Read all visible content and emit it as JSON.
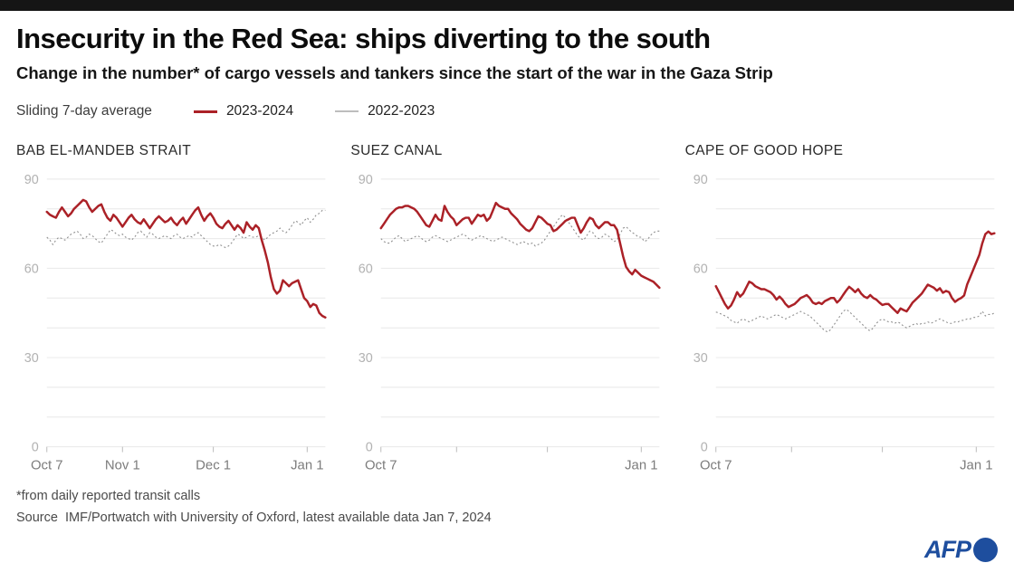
{
  "header": {
    "title": "Insecurity in the Red Sea: ships diverting to the south",
    "subtitle": "Change in the number* of cargo vessels and tankers since the start of the war in the Gaza Strip"
  },
  "legend": {
    "caption": "Sliding 7-day average",
    "series": [
      {
        "label": "2023-2024",
        "color": "#ab2127",
        "style": "solid"
      },
      {
        "label": "2022-2023",
        "color": "#bdbdbd",
        "style": "dotted"
      }
    ]
  },
  "colors": {
    "accent_red": "#ab2127",
    "series_gray": "#8f8f8f",
    "legend_gray": "#bdbdbd",
    "grid": "#e8e8e8",
    "tick": "#bbbbbb",
    "topbar_black": "#151515",
    "afp_blue": "#1e4e9e"
  },
  "footer": {
    "footnote": "*from daily reported transit calls",
    "source": "Source  IMF/Portwatch with University of Oxford, latest available data Jan 7, 2024",
    "logo_text": "AFP"
  },
  "chart_data": [
    {
      "type": "line",
      "title": "BAB EL-MANDEB STRAIT",
      "ylabel": "",
      "xlabel": "",
      "ylim": [
        0,
        90
      ],
      "yticks": [
        90,
        60,
        30,
        0
      ],
      "grid_step": 10,
      "grid": true,
      "days_total": 92,
      "x_tick_days": [
        0,
        25,
        55,
        86
      ],
      "x_tick_labels": [
        "Oct 7",
        "Nov 1",
        "Dec 1",
        "Jan 1"
      ],
      "series": [
        {
          "name": "2023-2024",
          "values": [
            79,
            78,
            77.5,
            77,
            79,
            80.5,
            79,
            77.5,
            78.5,
            80,
            81,
            82,
            83,
            82.5,
            80.5,
            79,
            80,
            81,
            81.5,
            79,
            77,
            76,
            78,
            77,
            75.5,
            74,
            75.5,
            77,
            78,
            76.5,
            75.5,
            75,
            76.5,
            75,
            73.5,
            75,
            76.5,
            77.5,
            76.5,
            75.5,
            76,
            77,
            75.5,
            74.5,
            76,
            77,
            75,
            76.5,
            78,
            79.5,
            80.5,
            78,
            76,
            77.5,
            78.5,
            77,
            75,
            74,
            73.5,
            75,
            76,
            74.5,
            73,
            74.5,
            73.5,
            72,
            75.5,
            74,
            73,
            74.5,
            73.5,
            69.5,
            66,
            62,
            57,
            53,
            51.5,
            52.5,
            56,
            55,
            54,
            55,
            55.5,
            56,
            53,
            50,
            49,
            47,
            48,
            47.5,
            45,
            44,
            43.5
          ]
        },
        {
          "name": "2022-2023",
          "values": [
            70.5,
            69.5,
            68,
            69.5,
            70.5,
            70,
            69.5,
            70.5,
            71.5,
            72,
            72.5,
            71.5,
            70,
            70.5,
            71.5,
            71,
            70,
            69,
            68.5,
            70,
            71.5,
            73,
            72.5,
            71.5,
            71,
            71.5,
            70.5,
            70,
            69.5,
            70.5,
            72,
            72.5,
            71.5,
            70.5,
            72,
            71.5,
            70.5,
            70,
            70.5,
            71,
            70.5,
            70,
            71,
            71.5,
            70.5,
            70,
            70.5,
            71,
            70.5,
            71.5,
            72,
            71,
            70,
            69,
            68,
            67.5,
            67.5,
            68,
            67.5,
            67,
            67.5,
            68.5,
            70,
            71.5,
            71,
            70,
            70.5,
            71,
            70.5,
            70.5,
            71,
            70.5,
            69.5,
            70.5,
            71.5,
            72,
            72.5,
            73.5,
            72.5,
            72,
            73,
            74.5,
            76,
            75.5,
            74.5,
            76,
            77,
            75.5,
            76.5,
            78,
            78.5,
            79.5,
            79.5
          ]
        }
      ]
    },
    {
      "type": "line",
      "title": "SUEZ CANAL",
      "ylabel": "",
      "xlabel": "",
      "ylim": [
        0,
        90
      ],
      "yticks": [
        90,
        60,
        30,
        0
      ],
      "grid_step": 10,
      "grid": true,
      "days_total": 92,
      "x_tick_days": [
        0,
        25,
        55,
        86
      ],
      "x_tick_labels": [
        "Oct 7",
        "",
        "",
        "Jan 1"
      ],
      "series": [
        {
          "name": "2023-2024",
          "values": [
            73.5,
            75,
            76.5,
            78,
            79,
            80,
            80.5,
            80.5,
            81,
            81,
            80.5,
            80,
            79,
            77.5,
            76,
            74.5,
            74,
            76,
            78,
            76.5,
            76,
            81,
            79,
            77.5,
            76.5,
            74.5,
            75.5,
            76.5,
            77,
            77,
            75,
            76.5,
            78,
            77.5,
            78,
            76,
            77,
            79.5,
            82,
            81,
            80.5,
            80,
            80,
            78.5,
            77.5,
            76.5,
            75,
            74,
            73,
            72.5,
            73.5,
            75.5,
            77.5,
            77,
            76,
            75,
            74.5,
            72.5,
            73,
            74,
            75,
            76,
            76.5,
            77,
            77,
            74.5,
            72,
            73.5,
            75.5,
            77,
            76.5,
            74.5,
            73.5,
            74.5,
            75.5,
            75.5,
            74.5,
            74.5,
            73,
            68.5,
            64,
            60.5,
            59,
            58,
            59.5,
            58.5,
            57.5,
            57,
            56.5,
            56,
            55.5,
            54.5,
            53.5
          ]
        },
        {
          "name": "2022-2023",
          "values": [
            70,
            69,
            68.5,
            68.5,
            69.5,
            70.5,
            71,
            70,
            69,
            69.5,
            70,
            70.5,
            71,
            70.5,
            69.5,
            69,
            69.5,
            70.5,
            71,
            70.5,
            70,
            69.5,
            69,
            69.5,
            70,
            70.5,
            71,
            71.5,
            71,
            70,
            69.5,
            70,
            70.5,
            71,
            70.5,
            70,
            69.5,
            69,
            69.5,
            70,
            70.5,
            70,
            69.5,
            69,
            68.5,
            68,
            68.5,
            69,
            68.5,
            68,
            68.5,
            67.5,
            68,
            68.5,
            69.5,
            71,
            72.5,
            74,
            75.5,
            77,
            78,
            77,
            75.5,
            74,
            72.5,
            71,
            70,
            69.5,
            71,
            72.5,
            72,
            70.5,
            70,
            70.5,
            71.5,
            71,
            70,
            69,
            69.5,
            71.5,
            73.5,
            74,
            73,
            72,
            71.5,
            70.5,
            70.5,
            69,
            69.5,
            71,
            72,
            72.5,
            72.5
          ]
        }
      ]
    },
    {
      "type": "line",
      "title": "CAPE OF GOOD HOPE",
      "ylabel": "",
      "xlabel": "",
      "ylim": [
        0,
        90
      ],
      "yticks": [
        90,
        60,
        30,
        0
      ],
      "grid_step": 10,
      "grid": true,
      "days_total": 92,
      "x_tick_days": [
        0,
        25,
        55,
        86
      ],
      "x_tick_labels": [
        "Oct 7",
        "",
        "",
        "Jan 1"
      ],
      "series": [
        {
          "name": "2023-2024",
          "values": [
            54,
            52,
            50,
            48,
            46.5,
            47.5,
            49.5,
            52,
            50.5,
            51.5,
            53.5,
            55.5,
            55,
            54,
            53.5,
            53,
            53,
            52.5,
            52,
            51,
            49.5,
            50.5,
            49.5,
            48,
            47,
            47.5,
            48,
            49,
            50,
            50.5,
            51,
            50,
            48.5,
            48,
            48.5,
            48,
            49,
            49.5,
            50,
            50,
            48.5,
            49.5,
            51,
            52.5,
            53.8,
            53,
            52,
            53,
            51.5,
            50.5,
            50,
            51,
            50,
            49.5,
            48.5,
            47.7,
            48,
            48,
            47,
            46,
            45,
            46.5,
            46,
            45.5,
            47,
            48.5,
            49.5,
            50.5,
            51.5,
            53,
            54.5,
            54,
            53.5,
            52.5,
            53.3,
            51.8,
            52.4,
            52,
            50,
            48.7,
            49.5,
            50,
            50.9,
            54.6,
            57,
            59.5,
            62,
            64.5,
            68.4,
            71.5,
            72.4,
            71.5,
            71.8
          ]
        },
        {
          "name": "2022-2023",
          "values": [
            45.3,
            45,
            44.5,
            44,
            43.5,
            42.5,
            42,
            41.5,
            42.5,
            43,
            42.5,
            42,
            42.5,
            43,
            43.5,
            44,
            43.5,
            43,
            43.5,
            44,
            44.5,
            44,
            43.5,
            43,
            43.5,
            44,
            44.5,
            45,
            45.5,
            45,
            44.5,
            44,
            43,
            42,
            41,
            40,
            39,
            38.6,
            39.5,
            41,
            42.5,
            44,
            45.5,
            46.2,
            45.5,
            44.5,
            43.5,
            42.5,
            41.6,
            40.5,
            39.5,
            39,
            40,
            41.5,
            42.5,
            43,
            42.5,
            42,
            42,
            41.5,
            42,
            41.5,
            40.5,
            40,
            40.5,
            41,
            41.5,
            41,
            41.5,
            41.5,
            42,
            41.5,
            42,
            42.5,
            43,
            42.5,
            42,
            41.5,
            41.5,
            42,
            42,
            42.5,
            42.5,
            43,
            43,
            43.5,
            43.5,
            44,
            45.6,
            44,
            44.5,
            44.5,
            45
          ]
        }
      ]
    }
  ]
}
